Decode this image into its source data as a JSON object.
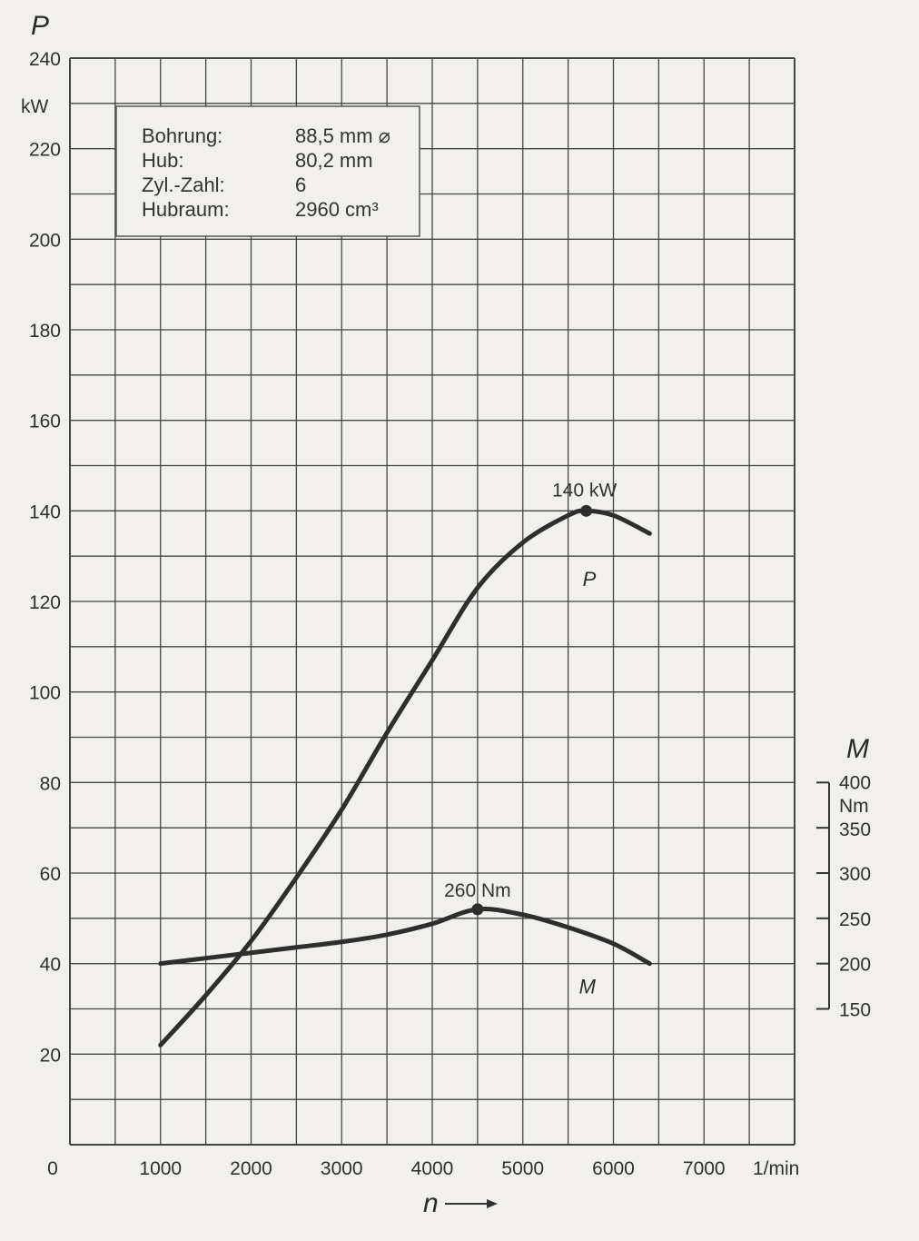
{
  "chart_data": {
    "type": "line",
    "x_axis": {
      "label": "n",
      "unit": "1/min",
      "origin_label": "0",
      "ticks": [
        1000,
        2000,
        3000,
        4000,
        5000,
        6000,
        7000
      ],
      "range": [
        0,
        8000
      ]
    },
    "y_left": {
      "label": "P",
      "unit": "kW",
      "ticks": [
        20,
        40,
        60,
        80,
        100,
        120,
        140,
        160,
        180,
        200,
        220,
        240
      ],
      "range": [
        0,
        240
      ]
    },
    "y_right": {
      "label": "M",
      "unit": "Nm",
      "ticks": [
        150,
        200,
        250,
        300,
        350,
        400
      ],
      "range": [
        150,
        400
      ]
    },
    "grid": true,
    "info_box": [
      {
        "key": "Bohrung:",
        "value": "88,5 mm ⌀"
      },
      {
        "key": "Hub:",
        "value": "80,2 mm"
      },
      {
        "key": "Zyl.-Zahl:",
        "value": "6"
      },
      {
        "key": "Hubraum:",
        "value": "2960 cm³"
      }
    ],
    "series": [
      {
        "name": "P",
        "axis": "left",
        "unit": "kW",
        "color": "#2e2e2e",
        "x": [
          1000,
          1500,
          2000,
          2500,
          3000,
          3500,
          4000,
          4500,
          5000,
          5500,
          5700,
          6000,
          6400
        ],
        "y": [
          22,
          33,
          45,
          59,
          74,
          91,
          107,
          123,
          133,
          139,
          140,
          139,
          135
        ],
        "peak": {
          "x": 5700,
          "y": 140,
          "label": "140 kW"
        }
      },
      {
        "name": "M",
        "axis": "right",
        "unit": "Nm",
        "color": "#2e2e2e",
        "x": [
          1000,
          1500,
          2000,
          2500,
          3000,
          3500,
          4000,
          4500,
          5000,
          5500,
          6000,
          6400
        ],
        "y": [
          200,
          206,
          212,
          218,
          224,
          232,
          244,
          260,
          254,
          240,
          222,
          200
        ],
        "peak": {
          "x": 4500,
          "y": 260,
          "label": "260 Nm"
        }
      }
    ]
  }
}
